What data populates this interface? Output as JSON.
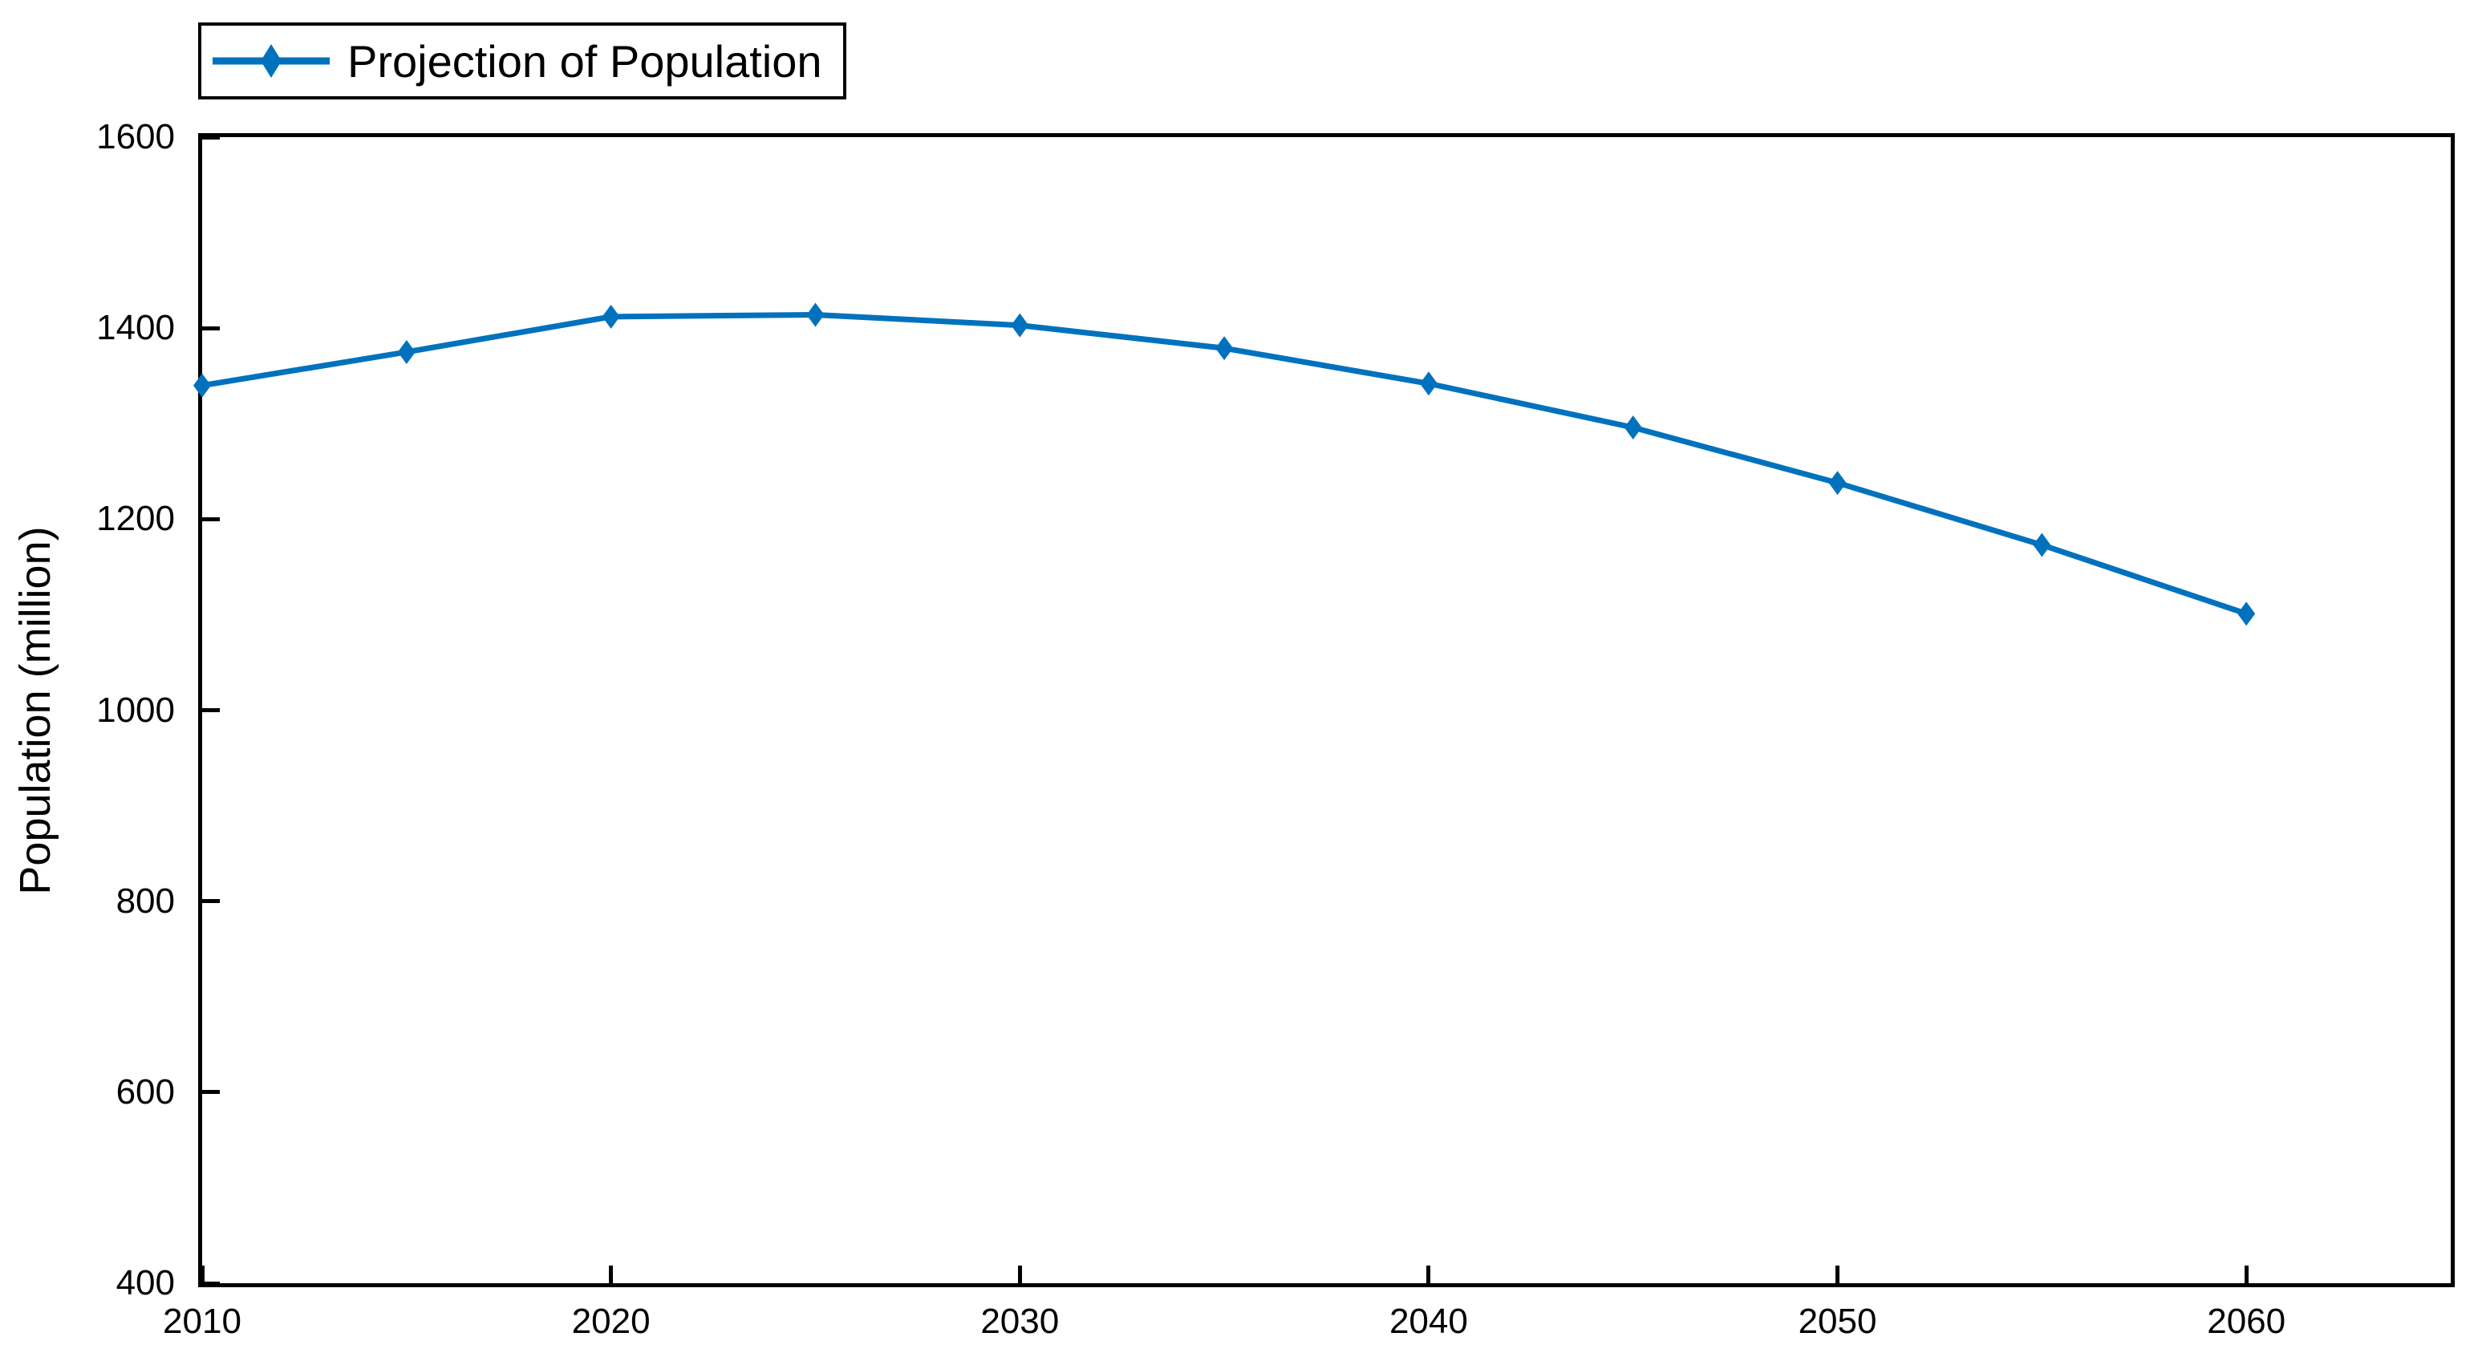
{
  "figure": {
    "background": "#ffffff",
    "axis_color": "#000000",
    "tick_label_color": "#000000"
  },
  "legend": {
    "label": "Projection of Population",
    "marker_icon": "diamond-marker-icon",
    "position": "top-left-outside"
  },
  "chart_data": {
    "type": "line",
    "title": "",
    "xlabel": "",
    "ylabel": "Population (million)",
    "x": [
      2010,
      2015,
      2020,
      2025,
      2030,
      2035,
      2040,
      2045,
      2050,
      2055,
      2060
    ],
    "series": [
      {
        "name": "Projection of Population",
        "values": [
          1340,
          1375,
          1412,
          1414,
          1403,
          1379,
          1342,
          1296,
          1238,
          1173,
          1101
        ],
        "color": "#0072BD",
        "marker": "diamond",
        "line_width": 7
      }
    ],
    "xlim": [
      2010,
      2065
    ],
    "ylim": [
      400,
      1600
    ],
    "x_ticks": [
      2010,
      2020,
      2030,
      2040,
      2050,
      2060
    ],
    "y_ticks": [
      400,
      600,
      800,
      1000,
      1200,
      1400,
      1600
    ],
    "grid": false,
    "legend_position": "top-left-outside"
  }
}
